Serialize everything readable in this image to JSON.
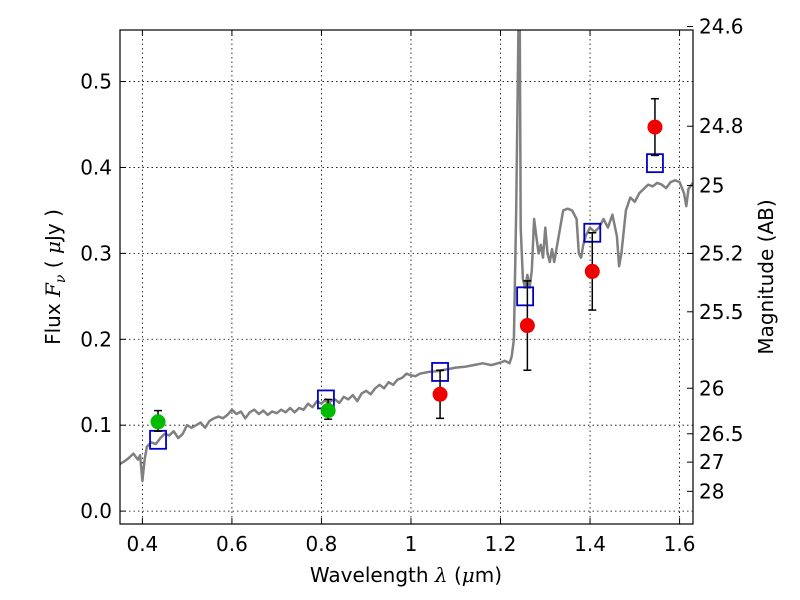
{
  "chart_data": {
    "type": "scatter",
    "xlabel": "Wavelength  λ (μm)",
    "ylabel": "Flux  F_ν  ( μJy )",
    "ylabel_parts": {
      "pre": "Flux  ",
      "symbol": "F",
      "sub": "ν",
      "mid": "  ( ",
      "mu": "μ",
      "post": "Jy )"
    },
    "xlabel_parts": {
      "pre": "Wavelength  ",
      "symbol": "λ",
      "mid": " (",
      "mu": "μ",
      "post": "m)"
    },
    "y2label": "Magnitude (AB)",
    "xlim": [
      0.35,
      1.63
    ],
    "ylim": [
      -0.015,
      0.56
    ],
    "grid": true,
    "x_ticks": [
      {
        "value": 0.4,
        "label": "0.4"
      },
      {
        "value": 0.6,
        "label": "0.6"
      },
      {
        "value": 0.8,
        "label": "0.8"
      },
      {
        "value": 1.0,
        "label": "1"
      },
      {
        "value": 1.2,
        "label": "1.2"
      },
      {
        "value": 1.4,
        "label": "1.4"
      },
      {
        "value": 1.6,
        "label": "1.6"
      }
    ],
    "y_ticks": [
      {
        "value": 0.0,
        "label": "0.0"
      },
      {
        "value": 0.1,
        "label": "0.1"
      },
      {
        "value": 0.2,
        "label": "0.2"
      },
      {
        "value": 0.3,
        "label": "0.3"
      },
      {
        "value": 0.4,
        "label": "0.4"
      },
      {
        "value": 0.5,
        "label": "0.5"
      }
    ],
    "y2_ticks": [
      {
        "flux": 0.564,
        "label": "24.6"
      },
      {
        "flux": 0.448,
        "label": "24.8"
      },
      {
        "flux": 0.379,
        "label": "25"
      },
      {
        "flux": 0.3,
        "label": "25.2"
      },
      {
        "flux": 0.232,
        "label": "25.5"
      },
      {
        "flux": 0.143,
        "label": "26"
      },
      {
        "flux": 0.09,
        "label": "26.5"
      },
      {
        "flux": 0.057,
        "label": "27"
      },
      {
        "flux": 0.023,
        "label": "28"
      }
    ],
    "series": [
      {
        "kind": "spectrum",
        "color": "#808080",
        "points": [
          [
            0.35,
            0.055
          ],
          [
            0.36,
            0.058
          ],
          [
            0.37,
            0.062
          ],
          [
            0.38,
            0.067
          ],
          [
            0.39,
            0.06
          ],
          [
            0.395,
            0.065
          ],
          [
            0.4,
            0.035
          ],
          [
            0.405,
            0.06
          ],
          [
            0.41,
            0.075
          ],
          [
            0.42,
            0.08
          ],
          [
            0.43,
            0.078
          ],
          [
            0.44,
            0.085
          ],
          [
            0.45,
            0.09
          ],
          [
            0.46,
            0.088
          ],
          [
            0.47,
            0.093
          ],
          [
            0.48,
            0.085
          ],
          [
            0.49,
            0.09
          ],
          [
            0.5,
            0.1
          ],
          [
            0.51,
            0.097
          ],
          [
            0.52,
            0.1
          ],
          [
            0.53,
            0.103
          ],
          [
            0.54,
            0.097
          ],
          [
            0.55,
            0.105
          ],
          [
            0.56,
            0.108
          ],
          [
            0.57,
            0.11
          ],
          [
            0.58,
            0.108
          ],
          [
            0.59,
            0.112
          ],
          [
            0.6,
            0.118
          ],
          [
            0.61,
            0.113
          ],
          [
            0.62,
            0.116
          ],
          [
            0.63,
            0.108
          ],
          [
            0.64,
            0.115
          ],
          [
            0.65,
            0.118
          ],
          [
            0.66,
            0.113
          ],
          [
            0.67,
            0.117
          ],
          [
            0.68,
            0.112
          ],
          [
            0.69,
            0.116
          ],
          [
            0.7,
            0.114
          ],
          [
            0.71,
            0.118
          ],
          [
            0.72,
            0.115
          ],
          [
            0.73,
            0.12
          ],
          [
            0.74,
            0.115
          ],
          [
            0.75,
            0.12
          ],
          [
            0.76,
            0.118
          ],
          [
            0.77,
            0.125
          ],
          [
            0.78,
            0.121
          ],
          [
            0.79,
            0.128
          ],
          [
            0.8,
            0.125
          ],
          [
            0.81,
            0.13
          ],
          [
            0.815,
            0.122
          ],
          [
            0.82,
            0.128
          ],
          [
            0.83,
            0.13
          ],
          [
            0.84,
            0.126
          ],
          [
            0.85,
            0.133
          ],
          [
            0.86,
            0.13
          ],
          [
            0.87,
            0.135
          ],
          [
            0.88,
            0.128
          ],
          [
            0.89,
            0.137
          ],
          [
            0.9,
            0.14
          ],
          [
            0.91,
            0.136
          ],
          [
            0.92,
            0.143
          ],
          [
            0.93,
            0.147
          ],
          [
            0.94,
            0.143
          ],
          [
            0.95,
            0.15
          ],
          [
            0.96,
            0.147
          ],
          [
            0.97,
            0.153
          ],
          [
            0.98,
            0.155
          ],
          [
            0.99,
            0.16
          ],
          [
            1.0,
            0.158
          ],
          [
            1.01,
            0.157
          ],
          [
            1.02,
            0.16
          ],
          [
            1.04,
            0.162
          ],
          [
            1.06,
            0.163
          ],
          [
            1.08,
            0.165
          ],
          [
            1.1,
            0.167
          ],
          [
            1.12,
            0.168
          ],
          [
            1.14,
            0.17
          ],
          [
            1.16,
            0.172
          ],
          [
            1.18,
            0.17
          ],
          [
            1.2,
            0.173
          ],
          [
            1.21,
            0.175
          ],
          [
            1.22,
            0.172
          ],
          [
            1.225,
            0.18
          ],
          [
            1.23,
            0.2
          ],
          [
            1.235,
            0.35
          ],
          [
            1.24,
            0.56
          ],
          [
            1.243,
            0.56
          ],
          [
            1.245,
            0.33
          ],
          [
            1.25,
            0.27
          ],
          [
            1.255,
            0.26
          ],
          [
            1.26,
            0.275
          ],
          [
            1.265,
            0.26
          ],
          [
            1.27,
            0.28
          ],
          [
            1.275,
            0.34
          ],
          [
            1.28,
            0.32
          ],
          [
            1.285,
            0.3
          ],
          [
            1.29,
            0.31
          ],
          [
            1.295,
            0.295
          ],
          [
            1.3,
            0.33
          ],
          [
            1.305,
            0.3
          ],
          [
            1.31,
            0.29
          ],
          [
            1.315,
            0.305
          ],
          [
            1.32,
            0.29
          ],
          [
            1.33,
            0.32
          ],
          [
            1.34,
            0.35
          ],
          [
            1.35,
            0.352
          ],
          [
            1.36,
            0.35
          ],
          [
            1.37,
            0.34
          ],
          [
            1.375,
            0.3
          ],
          [
            1.38,
            0.295
          ],
          [
            1.385,
            0.31
          ],
          [
            1.39,
            0.32
          ],
          [
            1.4,
            0.33
          ],
          [
            1.41,
            0.325
          ],
          [
            1.42,
            0.33
          ],
          [
            1.43,
            0.34
          ],
          [
            1.44,
            0.33
          ],
          [
            1.45,
            0.345
          ],
          [
            1.46,
            0.32
          ],
          [
            1.465,
            0.285
          ],
          [
            1.47,
            0.3
          ],
          [
            1.48,
            0.35
          ],
          [
            1.49,
            0.365
          ],
          [
            1.5,
            0.36
          ],
          [
            1.51,
            0.37
          ],
          [
            1.52,
            0.375
          ],
          [
            1.53,
            0.38
          ],
          [
            1.54,
            0.378
          ],
          [
            1.55,
            0.382
          ],
          [
            1.56,
            0.38
          ],
          [
            1.57,
            0.376
          ],
          [
            1.58,
            0.383
          ],
          [
            1.59,
            0.385
          ],
          [
            1.6,
            0.383
          ],
          [
            1.61,
            0.37
          ],
          [
            1.615,
            0.355
          ],
          [
            1.62,
            0.375
          ],
          [
            1.63,
            0.382
          ]
        ]
      },
      {
        "kind": "model_flux",
        "marker": "open-square",
        "color": "#0000cc",
        "points": [
          [
            0.435,
            0.083
          ],
          [
            0.81,
            0.13
          ],
          [
            1.065,
            0.162
          ],
          [
            1.255,
            0.25
          ],
          [
            1.405,
            0.324
          ],
          [
            1.545,
            0.405
          ]
        ]
      },
      {
        "kind": "observed_flux",
        "marker": "filled-circle",
        "points": [
          {
            "x": 0.435,
            "y": 0.104,
            "err_lo": 0.011,
            "err_hi": 0.013,
            "color": "#00bb00"
          },
          {
            "x": 0.815,
            "y": 0.117,
            "err_lo": 0.01,
            "err_hi": 0.013,
            "color": "#00bb00"
          },
          {
            "x": 1.065,
            "y": 0.136,
            "err_lo": 0.028,
            "err_hi": 0.028,
            "color": "#ee0000"
          },
          {
            "x": 1.26,
            "y": 0.216,
            "err_lo": 0.052,
            "err_hi": 0.052,
            "color": "#ee0000"
          },
          {
            "x": 1.405,
            "y": 0.279,
            "err_lo": 0.045,
            "err_hi": 0.045,
            "color": "#ee0000"
          },
          {
            "x": 1.545,
            "y": 0.447,
            "err_lo": 0.033,
            "err_hi": 0.033,
            "color": "#ee0000"
          }
        ]
      }
    ]
  }
}
